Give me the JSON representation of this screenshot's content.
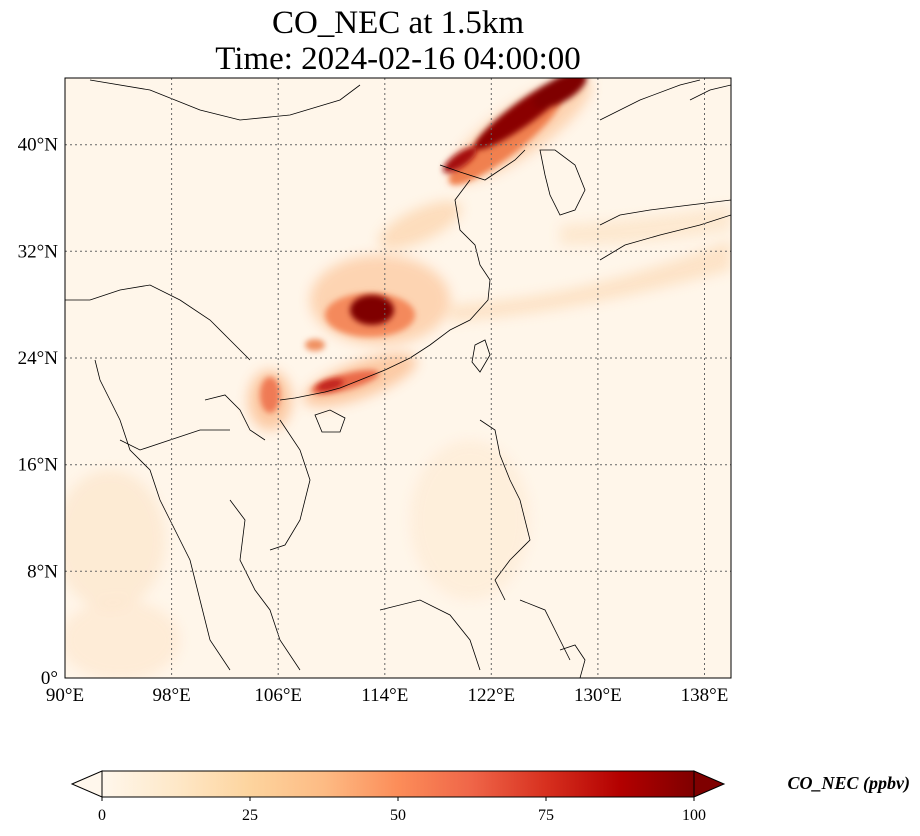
{
  "title": {
    "line1": "CO_NEC at 1.5km",
    "line2": "Time: 2024-02-16 04:00:00"
  },
  "map": {
    "lon_range": [
      90,
      140
    ],
    "lat_range": [
      0,
      45
    ],
    "gridlines": "dotted",
    "lon_ticks": [
      "90°E",
      "98°E",
      "106°E",
      "114°E",
      "122°E",
      "130°E",
      "138°E"
    ],
    "lat_ticks": [
      "0°",
      "8°N",
      "16°N",
      "24°N",
      "32°N",
      "40°N"
    ]
  },
  "colorbar": {
    "label": "CO_NEC (ppbv)",
    "colormap": "OrRd",
    "range": [
      0,
      100
    ],
    "extend": "both",
    "ticks": [
      "0",
      "25",
      "50",
      "75",
      "100"
    ],
    "colors": [
      "#fff7ec",
      "#fee8c8",
      "#fdd49e",
      "#fdbb84",
      "#fc8d59",
      "#ef6548",
      "#d7301f",
      "#b30000",
      "#7f0000"
    ]
  }
}
